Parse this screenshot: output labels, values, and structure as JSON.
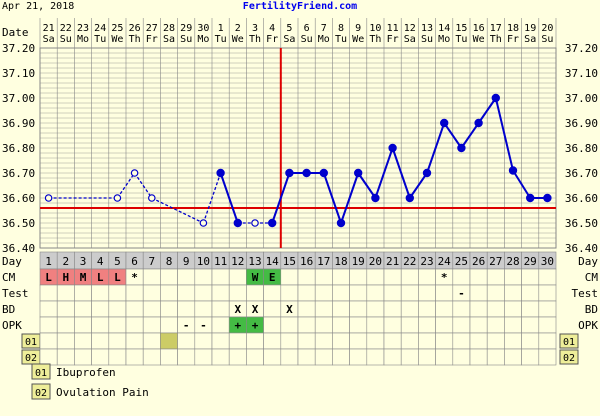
{
  "header": {
    "date": "Apr 21, 2018",
    "site": "FertilityFriend.com"
  },
  "row_labels": {
    "date": "Date",
    "day": "Day",
    "cm": "CM",
    "test": "Test",
    "bd": "BD",
    "opk": "OPK",
    "custom1": "01",
    "custom2": "02"
  },
  "dates": [
    {
      "num": "21",
      "dow": "Sa"
    },
    {
      "num": "22",
      "dow": "Su"
    },
    {
      "num": "23",
      "dow": "Mo"
    },
    {
      "num": "24",
      "dow": "Tu"
    },
    {
      "num": "25",
      "dow": "We"
    },
    {
      "num": "26",
      "dow": "Th"
    },
    {
      "num": "27",
      "dow": "Fr"
    },
    {
      "num": "28",
      "dow": "Sa"
    },
    {
      "num": "29",
      "dow": "Su"
    },
    {
      "num": "30",
      "dow": "Mo"
    },
    {
      "num": "1",
      "dow": "Tu"
    },
    {
      "num": "2",
      "dow": "We"
    },
    {
      "num": "3",
      "dow": "Th"
    },
    {
      "num": "4",
      "dow": "Fr"
    },
    {
      "num": "5",
      "dow": "Sa"
    },
    {
      "num": "6",
      "dow": "Su"
    },
    {
      "num": "7",
      "dow": "Mo"
    },
    {
      "num": "8",
      "dow": "Tu"
    },
    {
      "num": "9",
      "dow": "We"
    },
    {
      "num": "10",
      "dow": "Th"
    },
    {
      "num": "11",
      "dow": "Fr"
    },
    {
      "num": "12",
      "dow": "Sa"
    },
    {
      "num": "13",
      "dow": "Su"
    },
    {
      "num": "14",
      "dow": "Mo"
    },
    {
      "num": "15",
      "dow": "Tu"
    },
    {
      "num": "16",
      "dow": "We"
    },
    {
      "num": "17",
      "dow": "Th"
    },
    {
      "num": "18",
      "dow": "Fr"
    },
    {
      "num": "19",
      "dow": "Sa"
    },
    {
      "num": "20",
      "dow": "Su"
    }
  ],
  "chart_data": {
    "type": "line",
    "x": [
      1,
      2,
      3,
      4,
      5,
      6,
      7,
      8,
      9,
      10,
      11,
      12,
      13,
      14,
      15,
      16,
      17,
      18,
      19,
      20,
      21,
      22,
      23,
      24,
      25,
      26,
      27,
      28,
      29,
      30
    ],
    "ylim": [
      36.4,
      37.2
    ],
    "yticks": [
      "37.20",
      "37.10",
      "37.00",
      "36.90",
      "36.80",
      "36.70",
      "36.60",
      "36.50",
      "36.40"
    ],
    "series": [
      {
        "values": [
          36.6,
          null,
          null,
          null,
          36.6,
          36.7,
          36.6,
          null,
          null,
          36.5,
          36.7,
          36.5,
          36.5,
          36.5,
          36.7,
          36.7,
          36.7,
          36.5,
          36.7,
          36.6,
          36.8,
          36.6,
          36.7,
          36.9,
          36.8,
          36.9,
          37.0,
          36.71,
          36.6,
          36.6
        ],
        "discarded": [
          1,
          5,
          6,
          7,
          10,
          13
        ]
      }
    ],
    "coverline": 36.56,
    "ovulation_day": 14,
    "grid": true,
    "colors": {
      "line": "#0000cc",
      "coverline": "#dd0000",
      "grid": "#888888",
      "plot_bg": "#ffffe0"
    }
  },
  "cm": {
    "1": {
      "text": "L",
      "color": "#f08080"
    },
    "2": {
      "text": "H",
      "color": "#f08080"
    },
    "3": {
      "text": "M",
      "color": "#f08080"
    },
    "4": {
      "text": "L",
      "color": "#f08080"
    },
    "5": {
      "text": "L",
      "color": "#f08080"
    },
    "6": {
      "text": "*",
      "color": null
    },
    "13": {
      "text": "W",
      "color": "#44bb44"
    },
    "14": {
      "text": "E",
      "color": "#44bb44"
    },
    "24": {
      "text": "*",
      "color": null
    }
  },
  "test": {
    "25": {
      "text": "-",
      "color": null
    }
  },
  "bd": {
    "12": {
      "text": "X",
      "color": null
    },
    "13": {
      "text": "X",
      "color": null
    },
    "15": {
      "text": "X",
      "color": null
    }
  },
  "opk": {
    "9": {
      "text": "-",
      "color": null
    },
    "10": {
      "text": "-",
      "color": null
    },
    "12": {
      "text": "+",
      "color": "#44bb44"
    },
    "13": {
      "text": "+",
      "color": "#44bb44"
    }
  },
  "custom1": {
    "8": {
      "text": "",
      "color": "#cccc66"
    }
  },
  "custom2": {},
  "legend": [
    {
      "code": "01",
      "label": "Ibuprofen"
    },
    {
      "code": "02",
      "label": "Ovulation Pain"
    }
  ]
}
